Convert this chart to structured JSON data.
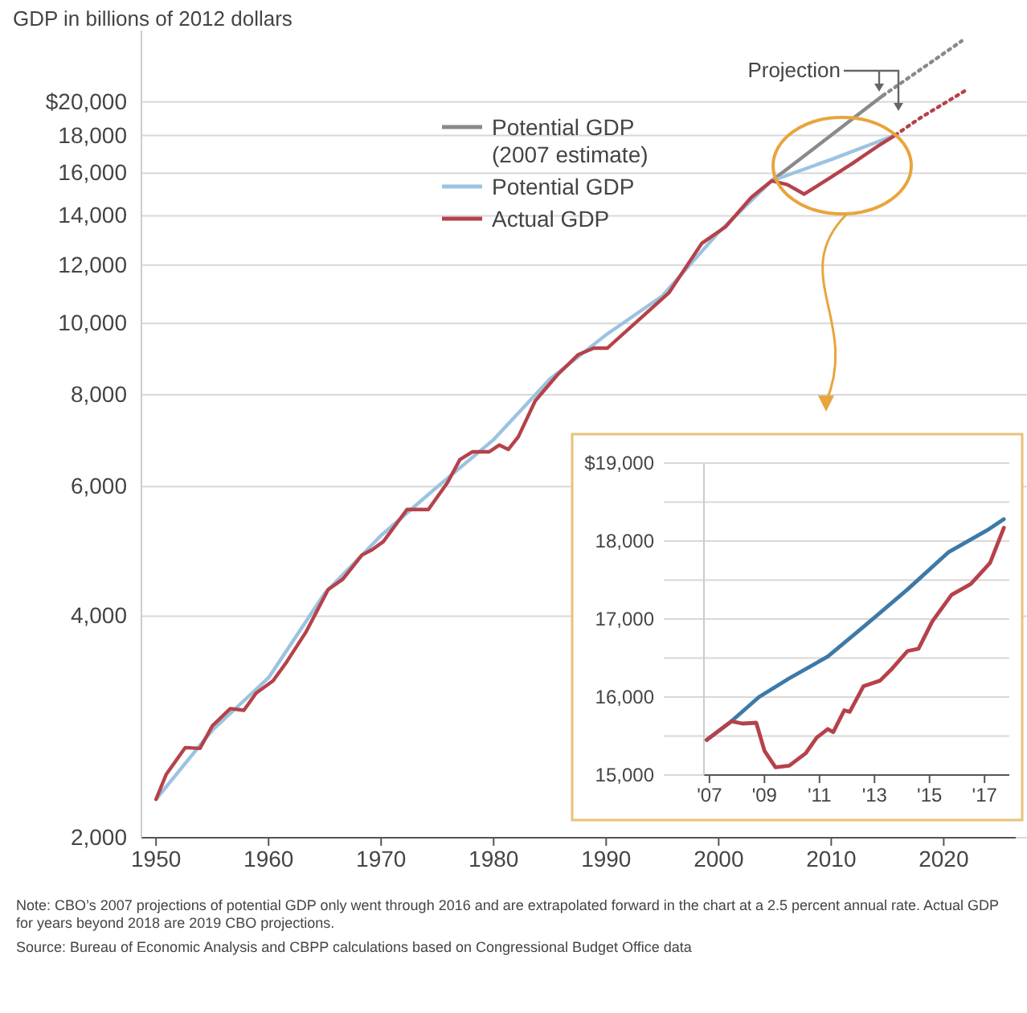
{
  "chart_data": [
    {
      "type": "line",
      "title": "GDP in billions of 2012 dollars",
      "log": "y",
      "grid": "y",
      "legend": "top",
      "xlim": [
        1948.7,
        2026.4
      ],
      "ylim": [
        2000,
        25000
      ],
      "xticks": [
        1950,
        1960,
        1970,
        1980,
        1990,
        2000,
        2010,
        2020
      ],
      "yticks": [
        {
          "value": 2000,
          "label": "2,000"
        },
        {
          "value": 4000,
          "label": "4,000"
        },
        {
          "value": 6000,
          "label": "6,000"
        },
        {
          "value": 8000,
          "label": "8,000"
        },
        {
          "value": 10000,
          "label": "10,000"
        },
        {
          "value": 12000,
          "label": "12,000"
        },
        {
          "value": 14000,
          "label": "14,000"
        },
        {
          "value": 16000,
          "label": "16,000"
        },
        {
          "value": 18000,
          "label": "18,000"
        },
        {
          "value": 20000,
          "label": "$20,000"
        }
      ],
      "series": [
        {
          "name": "Potential GDP (2007 estimate)",
          "color": "#8a8a8a",
          "line_style": "solid",
          "x": [
            2004.7,
            2014.6
          ],
          "values": [
            15620,
            20400
          ]
        },
        {
          "name": "Potential GDP",
          "color": "#9cc3e0",
          "line_style": "solid",
          "x": [
            1950,
            1955,
            1960,
            1965,
            1970,
            1975,
            1980,
            1985,
            1990,
            1995,
            2000,
            2004.7,
            2010,
            2015.7
          ],
          "values": [
            2256,
            2800,
            3300,
            4300,
            5150,
            6000,
            6950,
            8400,
            9650,
            10900,
            13300,
            15620,
            16700,
            18024
          ]
        },
        {
          "name": "Actual GDP",
          "color": "#b5424a",
          "line_style": "solid",
          "x": [
            1950,
            1950.9,
            1952.6,
            1953.9,
            1955.0,
            1956.6,
            1957.8,
            1958.9,
            1960.4,
            1961.6,
            1963.3,
            1965.3,
            1966.6,
            1968.3,
            1969.2,
            1970.2,
            1972.3,
            1974.2,
            1975.9,
            1977.0,
            1978.1,
            1979.6,
            1980.5,
            1981.3,
            1982.2,
            1983.7,
            1985.7,
            1987.5,
            1988.9,
            1990.1,
            1992.7,
            1995.6,
            1998.5,
            2000.6,
            2002.9,
            2004.7,
            2006.1,
            2007.6,
            2009.9,
            2011.9,
            2014.3,
            2015.7
          ],
          "values": [
            2256,
            2438,
            2652,
            2645,
            2838,
            2996,
            2980,
            3146,
            3268,
            3466,
            3802,
            4348,
            4492,
            4844,
            4926,
            5052,
            5586,
            5586,
            6076,
            6530,
            6690,
            6690,
            6834,
            6740,
            7016,
            7850,
            8524,
            9064,
            9254,
            9254,
            10048,
            11016,
            12848,
            13524,
            14832,
            15620,
            15440,
            14984,
            15774,
            16504,
            17478,
            18024
          ]
        },
        {
          "color": "#8a8a8a",
          "line_style": "dotted",
          "x": [
            2014.6,
            2021.6
          ],
          "values": [
            20400,
            24200
          ]
        },
        {
          "color": "#b5424a",
          "line_style": "dotted",
          "x": [
            2015.7,
            2017.8,
            2022.1
          ],
          "values": [
            18024,
            18972,
            20800
          ]
        }
      ],
      "annotations": [
        "Projection",
        "Note: CBO’s 2007 projections of potential GDP only went through 2016 and are extrapolated forward in the chart at a 2.5 percent annual rate.  Actual GDP for years beyond 2018 are 2019 CBO projections.",
        "Source: Bureau of Economic Analysis and CBPP calculations based on Congressional Budget Office data"
      ]
    },
    {
      "type": "line",
      "grid": "y",
      "xlim": [
        2006.8,
        2017.9
      ],
      "ylim": [
        15000,
        19000
      ],
      "xticks": [
        {
          "value": 2007,
          "label": "'07"
        },
        {
          "value": 2009,
          "label": "'09"
        },
        {
          "value": 2011,
          "label": "'11"
        },
        {
          "value": 2013,
          "label": "'13"
        },
        {
          "value": 2015,
          "label": "'15"
        },
        {
          "value": 2017,
          "label": "'17"
        }
      ],
      "yticks": [
        {
          "value": 15000,
          "label": "15,000"
        },
        {
          "value": 15500,
          "label": null
        },
        {
          "value": 16000,
          "label": "16,000"
        },
        {
          "value": 16500,
          "label": null
        },
        {
          "value": 17000,
          "label": "17,000"
        },
        {
          "value": 17500,
          "label": null
        },
        {
          "value": 18000,
          "label": "18,000"
        },
        {
          "value": 18500,
          "label": null
        },
        {
          "value": 19000,
          "label": "$19,000"
        }
      ],
      "series": [
        {
          "color": "#3d79a8",
          "line_style": "solid",
          "x": [
            2006.9,
            2007.8,
            2008.8,
            2009.9,
            2011.3,
            2012.6,
            2014.2,
            2015.7,
            2017.1,
            2017.7
          ],
          "values": [
            15450,
            15690,
            16000,
            16240,
            16520,
            16900,
            17380,
            17860,
            18140,
            18280
          ]
        },
        {
          "color": "#b5424a",
          "line_style": "solid",
          "x": [
            2006.9,
            2007.8,
            2008.2,
            2008.7,
            2009.0,
            2009.4,
            2009.9,
            2010.5,
            2010.9,
            2011.3,
            2011.5,
            2011.9,
            2012.1,
            2012.6,
            2013.2,
            2013.6,
            2014.2,
            2014.6,
            2015.1,
            2015.8,
            2016.5,
            2017.2,
            2017.7
          ],
          "values": [
            15450,
            15690,
            15660,
            15670,
            15310,
            15100,
            15120,
            15280,
            15480,
            15590,
            15550,
            15830,
            15810,
            16140,
            16210,
            16350,
            16590,
            16620,
            16970,
            17310,
            17450,
            17720,
            18170
          ]
        }
      ]
    }
  ]
}
